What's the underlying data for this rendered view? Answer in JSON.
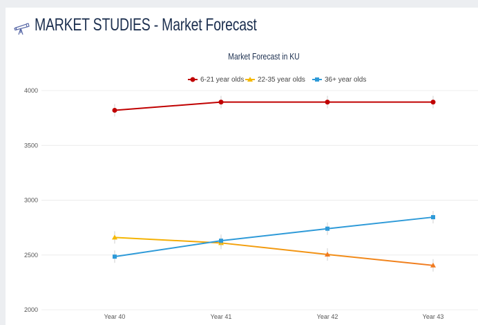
{
  "page": {
    "title": "MARKET STUDIES - Market Forecast",
    "icon": "telescope-icon"
  },
  "chart_data": {
    "type": "line",
    "title": "Market Forecast in KU",
    "categories": [
      "Year 40",
      "Year 41",
      "Year 42",
      "Year 43"
    ],
    "ylim": [
      2000,
      4000
    ],
    "yticks": [
      2000,
      2500,
      3000,
      3500,
      4000
    ],
    "grid": true,
    "legend": "top-center",
    "series": [
      {
        "name": "6-21 year olds",
        "values": [
          3820,
          3895,
          3895,
          3895
        ],
        "color": "#c00000",
        "marker": "circle"
      },
      {
        "name": "22-35 year olds",
        "values": [
          2660,
          2610,
          2505,
          2405
        ],
        "color": "#f5b800",
        "color_end": "#f07a20",
        "marker": "triangle"
      },
      {
        "name": "36+ year olds",
        "values": [
          2485,
          2630,
          2740,
          2845
        ],
        "color": "#2e9ad8",
        "marker": "square"
      }
    ]
  }
}
